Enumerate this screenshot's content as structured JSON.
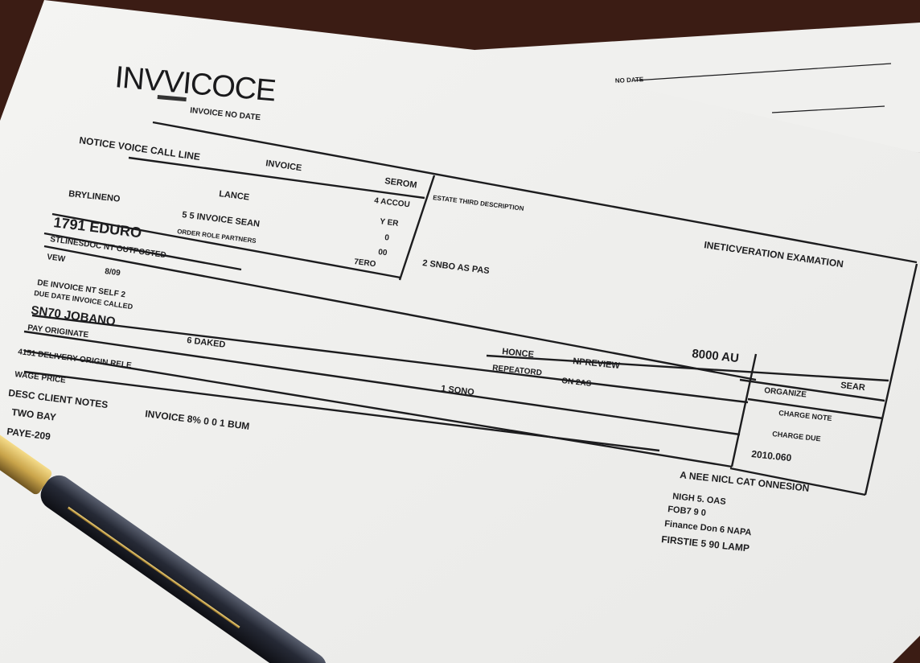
{
  "document": {
    "title": "INVVICOCE",
    "subtitle": "INVOICE NO DATE",
    "header_left": "NOTICE VOICE CALL LINE",
    "header_mid": "INVOICE",
    "header_right": "SEROM",
    "left_col": [
      "BRYLINENO",
      "1791 EDURO",
      "STLINESDOC NT OUTPOSTED",
      "VEW",
      "DE INVOICE NT SELF 2",
      "DUE DATE INVOICE CALLED",
      "SN70 JOBANO",
      "PAY ORIGINATE",
      "4151 DELIVERY ORIGIN RELE",
      "WAGE PRICE",
      "DESC CLIENT NOTES",
      "TWO BAY",
      "PAYE-209"
    ],
    "mid_col": [
      "LANCE",
      "5 5 INVOICE SEAN",
      "ORDER ROLE PARTNERS",
      "8/09",
      "6 DAKED",
      "1 SONO",
      "INVOICE 8% 0 0 1 BUM"
    ],
    "amounts": [
      "4 ACCOU",
      "Y ER",
      "0",
      "00",
      "7ERO"
    ],
    "right_header": "INETICVERATION EXAMATION",
    "right_note": "ESTATE THIRD DESCRIPTION",
    "right_amount": "2 SNBO AS PAS",
    "table_head": [
      "HONCE",
      "NPREVIEW",
      "8000 AU",
      "SEAR"
    ],
    "table_rows": [
      "REPEATORD",
      "ON 2AS",
      "ORGANIZE",
      "CHARGE NOTE",
      "CHARGE DUE"
    ],
    "total": "2010.060",
    "footer": [
      "A NEE NICL CAT ONNESION",
      "NIGH 5. OAS",
      "FOB7 9 0",
      "Finance Don 6 NAPA",
      "FIRSTIE 5 90 LAMP"
    ],
    "back_sheet_label": "NO DATE"
  },
  "colors": {
    "background": "#3b1c14",
    "paper": "#f2f2f0",
    "ink": "#1c1c1e",
    "pen_body": "#262a36",
    "pen_gold": "#c9a44a"
  }
}
